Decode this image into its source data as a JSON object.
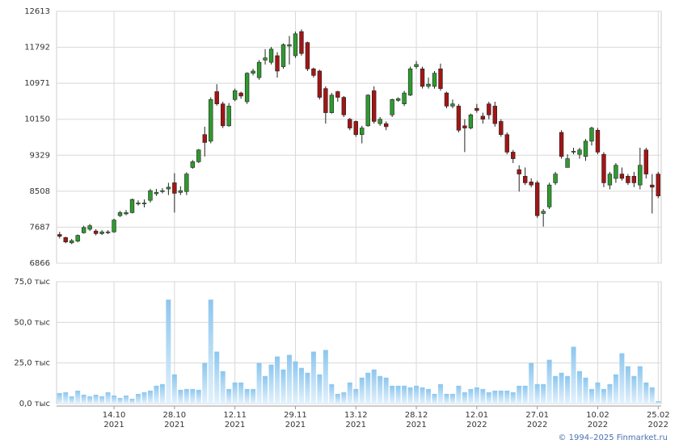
{
  "chart_data": {
    "type": "candlestick",
    "categories": [
      null,
      null,
      null,
      null,
      null,
      null,
      null,
      null,
      null,
      "14.10 2021",
      null,
      null,
      null,
      null,
      null,
      null,
      null,
      null,
      null,
      "28.10 2021",
      null,
      null,
      null,
      null,
      null,
      null,
      null,
      null,
      null,
      "12.11 2021",
      null,
      null,
      null,
      null,
      null,
      null,
      null,
      null,
      null,
      "29.11 2021",
      null,
      null,
      null,
      null,
      null,
      null,
      null,
      null,
      null,
      "13.12 2021",
      null,
      null,
      null,
      null,
      null,
      null,
      null,
      null,
      null,
      "28.12 2021",
      null,
      null,
      null,
      null,
      null,
      null,
      null,
      null,
      null,
      "12.01 2022",
      null,
      null,
      null,
      null,
      null,
      null,
      null,
      null,
      null,
      "27.01 2022",
      null,
      null,
      null,
      null,
      null,
      null,
      null,
      null,
      null,
      "10.02 2022",
      null,
      null,
      null,
      null,
      null,
      null,
      null,
      null,
      null,
      "25.02 2022"
    ],
    "open": [
      7520,
      7450,
      7330,
      7370,
      7560,
      7640,
      7600,
      7540,
      7560,
      7580,
      7950,
      7990,
      8020,
      8220,
      8220,
      8300,
      8450,
      8500,
      8560,
      8700,
      8480,
      8500,
      9050,
      9180,
      9800,
      9650,
      10780,
      10500,
      10000,
      10600,
      10750,
      10550,
      11200,
      11100,
      11500,
      11450,
      11600,
      11350,
      11820,
      11600,
      12150,
      11900,
      11300,
      11250,
      10850,
      10300,
      10780,
      10650,
      10150,
      10100,
      9800,
      10000,
      10800,
      10050,
      10050,
      10250,
      10580,
      10500,
      10700,
      11350,
      11300,
      10900,
      10900,
      11300,
      10750,
      10450,
      10450,
      10000,
      9950,
      10400,
      10220,
      10500,
      10450,
      10100,
      9800,
      9400,
      9000,
      8850,
      8720,
      8700,
      8000,
      8150,
      8700,
      9850,
      9050,
      9400,
      9350,
      9300,
      9650,
      9900,
      9350,
      8650,
      8800,
      8900,
      8850,
      8850,
      8650,
      9450,
      8650,
      8900
    ],
    "high": [
      7580,
      7470,
      7420,
      7520,
      7720,
      7760,
      7640,
      7620,
      7620,
      7880,
      8060,
      8080,
      8340,
      8300,
      8320,
      8560,
      8560,
      8580,
      8700,
      8920,
      8620,
      8940,
      9220,
      9470,
      9980,
      10650,
      10950,
      10550,
      10520,
      10850,
      10780,
      11220,
      11300,
      11500,
      11750,
      11800,
      11680,
      11880,
      12050,
      12150,
      12200,
      11920,
      11330,
      11280,
      10900,
      10750,
      10800,
      10680,
      10180,
      10120,
      10000,
      10720,
      10900,
      10200,
      10100,
      10620,
      10650,
      10800,
      11350,
      11480,
      11350,
      11100,
      11250,
      11420,
      10780,
      10600,
      10500,
      10150,
      10280,
      10500,
      10300,
      10550,
      10550,
      10150,
      9850,
      9450,
      9100,
      9050,
      8800,
      8750,
      8100,
      8700,
      8950,
      9900,
      9350,
      9500,
      9500,
      9700,
      9980,
      9950,
      9400,
      8950,
      9150,
      9050,
      8900,
      8950,
      9500,
      9500,
      8900,
      8950
    ],
    "low": [
      7430,
      7320,
      7300,
      7340,
      7540,
      7600,
      7500,
      7510,
      7530,
      7560,
      7920,
      7960,
      8000,
      8180,
      8140,
      8250,
      8400,
      8460,
      8420,
      8020,
      8420,
      8420,
      9020,
      9150,
      9300,
      9600,
      10460,
      9950,
      9980,
      10560,
      10620,
      10500,
      11150,
      11050,
      11400,
      11400,
      11100,
      11300,
      11400,
      11550,
      11600,
      11250,
      11100,
      10600,
      10050,
      10280,
      10550,
      10200,
      9900,
      9750,
      9600,
      9980,
      10050,
      10000,
      9900,
      10200,
      10550,
      10450,
      10680,
      11300,
      10850,
      10850,
      10850,
      10800,
      10400,
      10400,
      9850,
      9400,
      9920,
      10300,
      10050,
      10150,
      9980,
      9750,
      9350,
      9150,
      8500,
      8650,
      8600,
      7900,
      7700,
      8100,
      8650,
      9250,
      9050,
      9350,
      9250,
      9200,
      9550,
      9350,
      8600,
      8550,
      8700,
      8750,
      8650,
      8600,
      8550,
      8800,
      8000,
      8350
    ],
    "close": [
      7480,
      7350,
      7380,
      7500,
      7680,
      7720,
      7540,
      7580,
      7580,
      7850,
      8020,
      8020,
      8320,
      8240,
      8240,
      8520,
      8480,
      8520,
      8600,
      8460,
      8520,
      8900,
      9180,
      9450,
      9620,
      10600,
      10500,
      10000,
      10450,
      10800,
      10680,
      11200,
      11250,
      11450,
      11550,
      11750,
      11250,
      11850,
      11850,
      12100,
      11650,
      11300,
      11150,
      10650,
      10300,
      10700,
      10650,
      10250,
      9950,
      9800,
      9950,
      10700,
      10100,
      10150,
      9980,
      10600,
      10620,
      10750,
      11300,
      11400,
      10900,
      10950,
      11200,
      10850,
      10450,
      10500,
      9900,
      9950,
      10250,
      10350,
      10150,
      10250,
      10050,
      9800,
      9400,
      9250,
      8900,
      8700,
      8650,
      7950,
      8050,
      8650,
      8900,
      9300,
      9250,
      9420,
      9450,
      9650,
      9950,
      9400,
      8700,
      8900,
      9100,
      8800,
      8700,
      8700,
      9100,
      8900,
      8600,
      8400
    ],
    "up_color": "#2f9a2f",
    "down_color": "#a31515",
    "ylim": [
      6866,
      12613
    ],
    "yticks": [
      6866,
      7687,
      8508,
      9329,
      10150,
      10971,
      11792,
      12613
    ],
    "volume": {
      "color": "#8cc6ee",
      "values": [
        6.5,
        7,
        4.5,
        8,
        5.5,
        4.5,
        5.5,
        4.5,
        7,
        5,
        3.5,
        5,
        3,
        6,
        7,
        8,
        11,
        12,
        64,
        18,
        8.5,
        9,
        9,
        8.5,
        25,
        64,
        32,
        20,
        9,
        13,
        13,
        9,
        9,
        25,
        17,
        24,
        29,
        21,
        30,
        26,
        22,
        19,
        32,
        18,
        33,
        12,
        6,
        7,
        13,
        9,
        16,
        19,
        21,
        17,
        16,
        11,
        11,
        11,
        10,
        11,
        10,
        9,
        6,
        12,
        6,
        6,
        11,
        7,
        9,
        10,
        9,
        7,
        8,
        8,
        8,
        7,
        11,
        11,
        25,
        12,
        12,
        27,
        17,
        19,
        17,
        35,
        20,
        16,
        9,
        13,
        9,
        12,
        18,
        31,
        23,
        17,
        23,
        13,
        10,
        1.5
      ],
      "ylim": [
        0,
        75
      ],
      "yticks": [
        {
          "value": 0,
          "label": "0,0 тыс"
        },
        {
          "value": 25,
          "label": "25,0 тыс"
        },
        {
          "value": 50,
          "label": "50,0 тыс"
        },
        {
          "value": 75,
          "label": "75,0 тыс"
        }
      ]
    },
    "grid": true,
    "source": "© 1994–2025 Finmarket.ru"
  }
}
